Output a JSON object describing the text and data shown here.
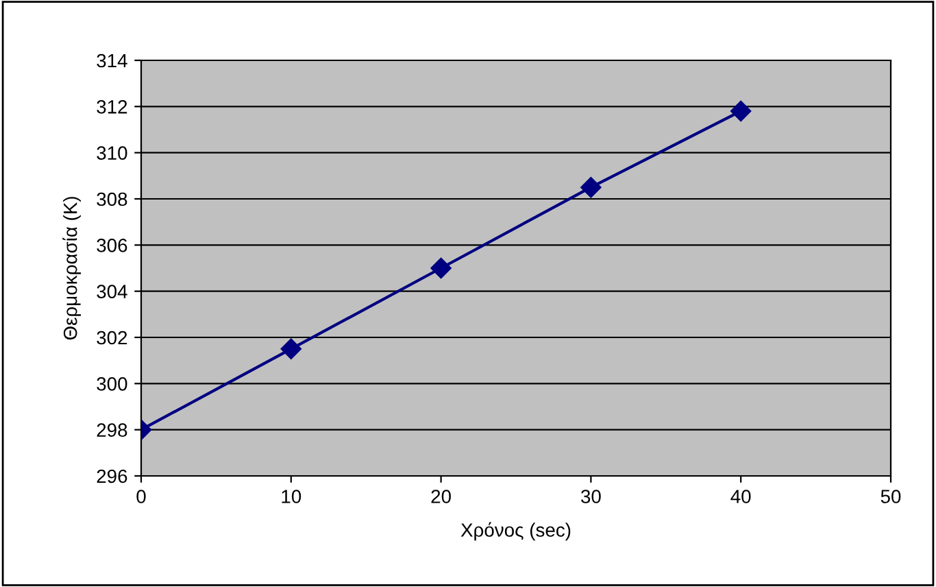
{
  "chart_data": {
    "type": "line",
    "xlabel": "Χρόνος (sec)",
    "ylabel": "Θερμοκρασία (K)",
    "x": [
      0,
      10,
      20,
      30,
      40
    ],
    "series": [
      {
        "color": "#000080",
        "values": [
          298,
          301.5,
          305,
          308.5,
          311.8
        ]
      }
    ],
    "xlim": [
      0,
      50
    ],
    "xticks": [
      0,
      10,
      20,
      30,
      40,
      50
    ],
    "ylim": [
      296,
      314
    ],
    "yticks": [
      296,
      298,
      300,
      302,
      304,
      306,
      308,
      310,
      312,
      314
    ],
    "grid": "y",
    "marker": "diamond",
    "line_style": "solid"
  }
}
